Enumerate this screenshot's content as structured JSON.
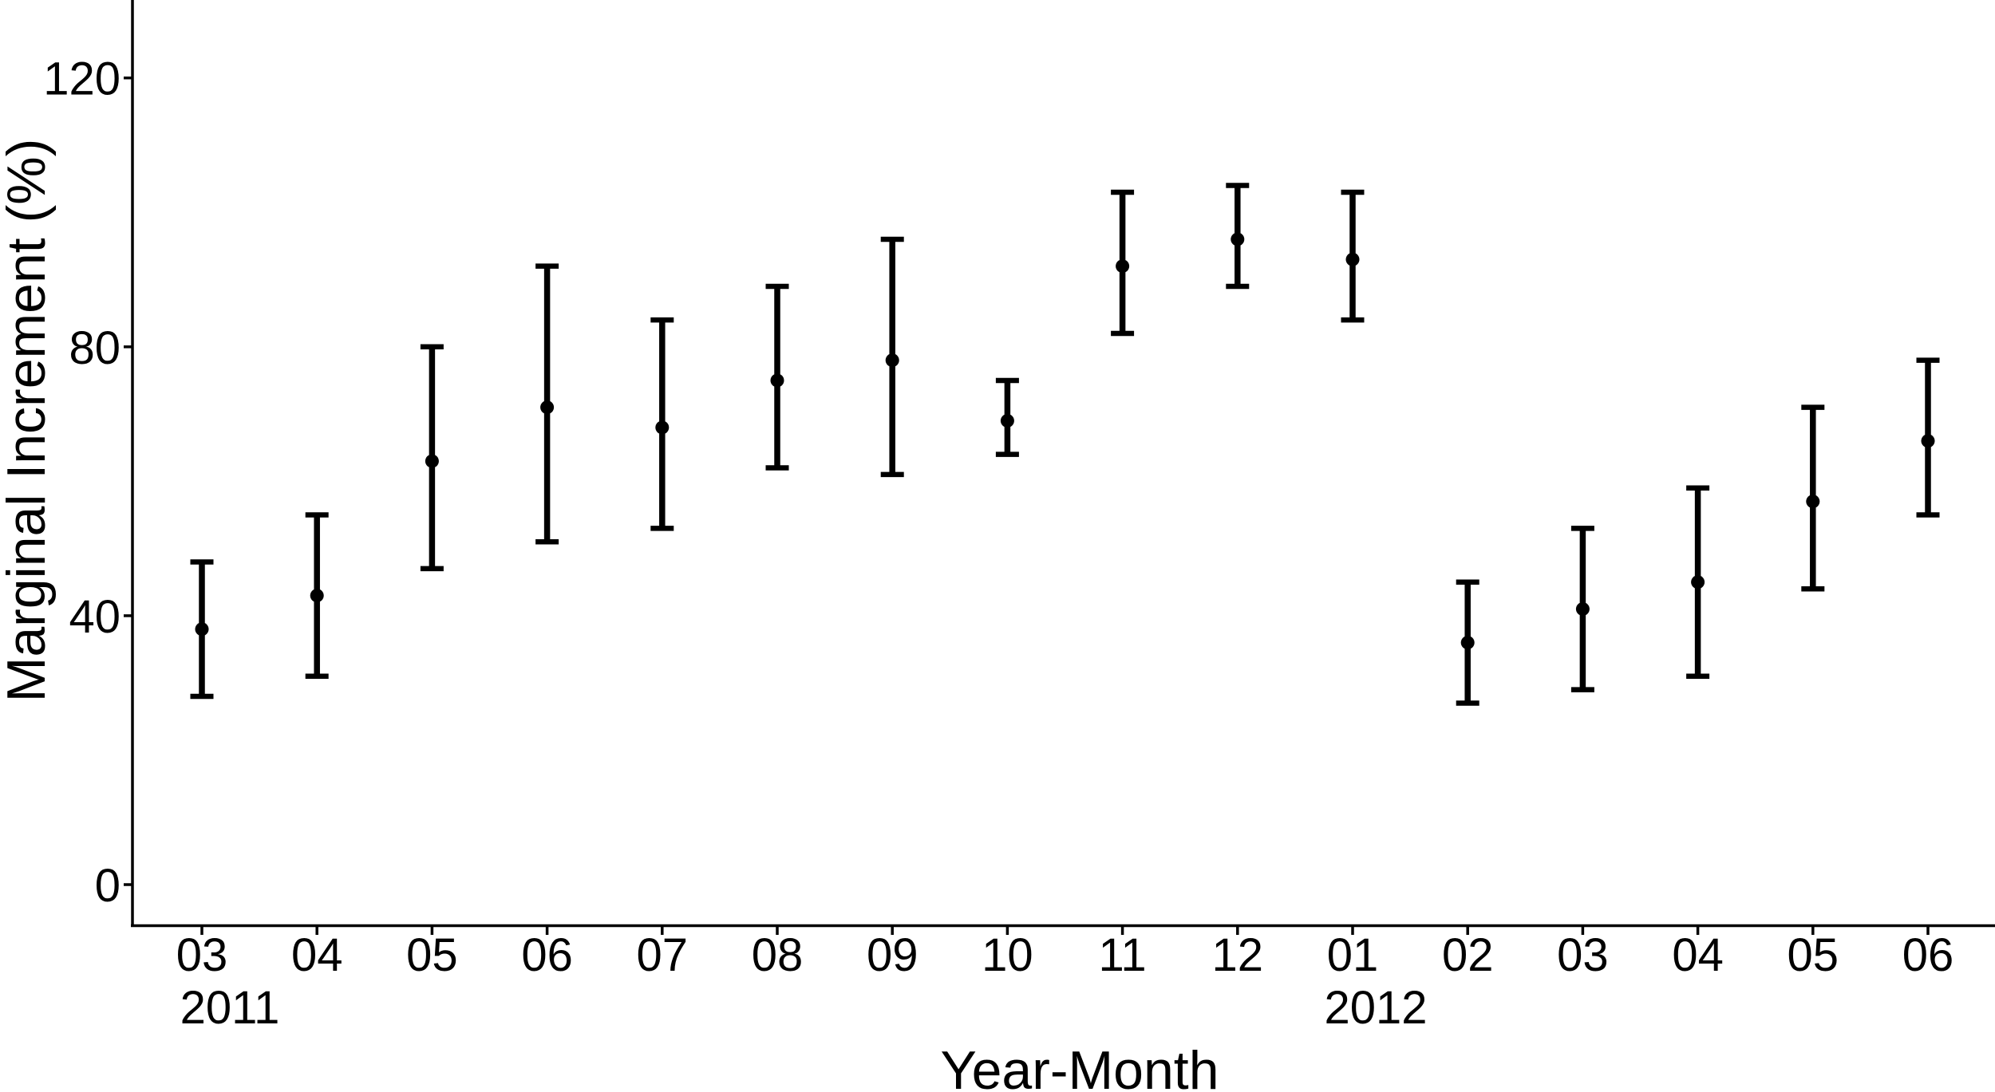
{
  "figure": {
    "background_color": "#ffffff",
    "ink_color": "#000000"
  },
  "chart_data": {
    "type": "errorbar",
    "title": "",
    "xlabel": "Year-Month",
    "ylabel": "Marginal Increment (%)",
    "y_ticks": [
      0,
      40,
      80,
      120
    ],
    "ylim": [
      -6,
      132
    ],
    "grid": false,
    "x_year_labels": [
      {
        "under_month_index": 0,
        "label": "2011"
      },
      {
        "under_month_index": 10,
        "label": "2012"
      }
    ],
    "points": [
      {
        "month": "03",
        "year": "2011",
        "mean": 38,
        "lower": 28,
        "upper": 48
      },
      {
        "month": "04",
        "year": "2011",
        "mean": 43,
        "lower": 31,
        "upper": 55
      },
      {
        "month": "05",
        "year": "2011",
        "mean": 63,
        "lower": 47,
        "upper": 80
      },
      {
        "month": "06",
        "year": "2011",
        "mean": 71,
        "lower": 51,
        "upper": 92
      },
      {
        "month": "07",
        "year": "2011",
        "mean": 68,
        "lower": 53,
        "upper": 84
      },
      {
        "month": "08",
        "year": "2011",
        "mean": 75,
        "lower": 62,
        "upper": 89
      },
      {
        "month": "09",
        "year": "2011",
        "mean": 78,
        "lower": 61,
        "upper": 96
      },
      {
        "month": "10",
        "year": "2011",
        "mean": 69,
        "lower": 64,
        "upper": 75
      },
      {
        "month": "11",
        "year": "2011",
        "mean": 92,
        "lower": 82,
        "upper": 103
      },
      {
        "month": "12",
        "year": "2011",
        "mean": 96,
        "lower": 89,
        "upper": 104
      },
      {
        "month": "01",
        "year": "2012",
        "mean": 93,
        "lower": 84,
        "upper": 103
      },
      {
        "month": "02",
        "year": "2012",
        "mean": 36,
        "lower": 27,
        "upper": 45
      },
      {
        "month": "03",
        "year": "2012",
        "mean": 41,
        "lower": 29,
        "upper": 53
      },
      {
        "month": "04",
        "year": "2012",
        "mean": 45,
        "lower": 31,
        "upper": 59
      },
      {
        "month": "05",
        "year": "2012",
        "mean": 57,
        "lower": 44,
        "upper": 71
      },
      {
        "month": "06",
        "year": "2012",
        "mean": 66,
        "lower": 55,
        "upper": 78
      }
    ]
  }
}
